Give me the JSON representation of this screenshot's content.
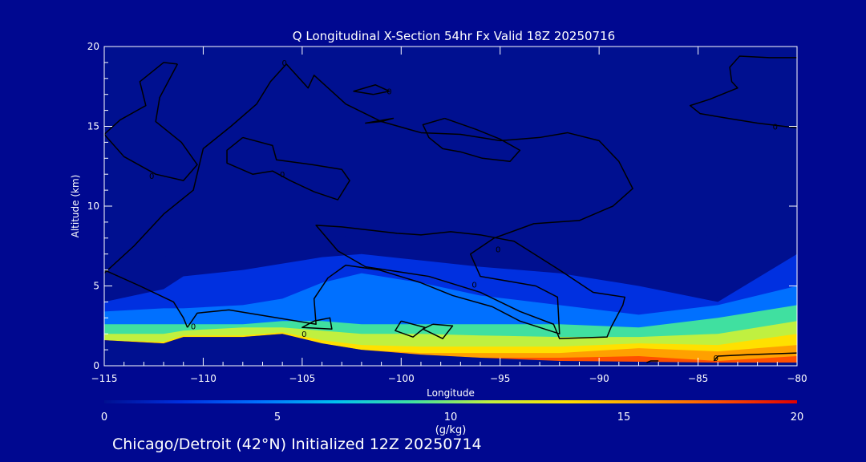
{
  "chart_data": {
    "type": "heatmap",
    "title": "Q Longitudinal X-Section 54hr  Fx Valid 18Z 20250716",
    "xlabel": "Longitude",
    "ylabel": "Altitude (km)",
    "xlim": [
      -115,
      -80
    ],
    "ylim": [
      0,
      20
    ],
    "xticks": [
      "−115",
      "−110",
      "−105",
      "−100",
      "−95",
      "−90",
      "−85",
      "−80"
    ],
    "yticks": [
      "0",
      "5",
      "10",
      "15",
      "20"
    ],
    "colorbar": {
      "label": "(g/kg)",
      "range": [
        0,
        20
      ],
      "ticks": [
        "0",
        "5",
        "10",
        "15",
        "20"
      ],
      "colors": [
        "#001090",
        "#0030e0",
        "#0070ff",
        "#00c0f0",
        "#40e0a0",
        "#c0f040",
        "#ffe000",
        "#ffa000",
        "#ff5000",
        "#e00000"
      ]
    },
    "contour_labels": [
      "0",
      "0",
      "0",
      "0",
      "0",
      "0",
      "0",
      "0",
      "0",
      "0"
    ],
    "terrain": {
      "lon": [
        -115,
        -112,
        -111,
        -108,
        -106,
        -104,
        -102,
        -99,
        -96,
        -92,
        -88,
        -84,
        -80
      ],
      "alt": [
        1.6,
        1.4,
        1.8,
        1.8,
        2.0,
        1.4,
        1.0,
        0.7,
        0.5,
        0.3,
        0.25,
        0.2,
        0.2
      ]
    },
    "moisture_layers": [
      {
        "q": 1,
        "top": [
          6.0,
          6.8,
          7.4,
          7.6,
          7.8,
          8.0,
          8.2,
          8.5,
          8.8,
          9.0,
          9.2,
          8.0,
          7.6
        ]
      },
      {
        "q": 3,
        "top": [
          4.0,
          4.8,
          5.6,
          6.0,
          6.4,
          6.8,
          7.0,
          6.6,
          6.2,
          5.8,
          5.0,
          4.0,
          7.0
        ]
      },
      {
        "q": 5,
        "top": [
          3.4,
          3.6,
          3.6,
          3.8,
          4.2,
          5.2,
          5.8,
          5.2,
          4.4,
          3.8,
          3.2,
          3.8,
          5.0
        ]
      },
      {
        "q": 8,
        "top": [
          2.6,
          2.6,
          2.6,
          2.6,
          2.8,
          2.8,
          2.6,
          2.6,
          2.6,
          2.6,
          2.4,
          3.0,
          3.8
        ]
      },
      {
        "q": 11,
        "top": [
          2.0,
          2.0,
          2.2,
          2.4,
          2.4,
          2.2,
          2.0,
          2.0,
          1.9,
          1.8,
          1.8,
          2.0,
          2.8
        ]
      },
      {
        "q": 13,
        "top": [
          1.6,
          1.5,
          1.9,
          1.9,
          2.1,
          1.6,
          1.3,
          1.2,
          1.2,
          1.2,
          1.4,
          1.3,
          2.0
        ]
      },
      {
        "q": 15,
        "top": [
          1.6,
          1.4,
          1.8,
          1.8,
          2.0,
          1.4,
          1.0,
          0.8,
          0.8,
          0.8,
          1.1,
          0.9,
          1.3
        ]
      },
      {
        "q": 17,
        "top": [
          1.6,
          1.4,
          1.8,
          1.8,
          2.0,
          1.4,
          1.0,
          0.7,
          0.5,
          0.5,
          0.6,
          0.3,
          0.6
        ]
      }
    ],
    "contours": [
      [
        [
          -115,
          5.8
        ],
        [
          -113.5,
          7.5
        ],
        [
          -112,
          9.5
        ],
        [
          -110.5,
          11.0
        ],
        [
          -110,
          13.6
        ],
        [
          -108.6,
          15.0
        ],
        [
          -107.3,
          16.4
        ],
        [
          -106.6,
          17.8
        ],
        [
          -105.8,
          18.9
        ],
        [
          -104.7,
          17.4
        ],
        [
          -104.4,
          18.2
        ],
        [
          -102.8,
          16.4
        ],
        [
          -101.0,
          15.3
        ],
        [
          -99.0,
          14.6
        ],
        [
          -97.0,
          14.5
        ],
        [
          -95.0,
          14.1
        ],
        [
          -93.0,
          14.3
        ],
        [
          -91.6,
          14.6
        ],
        [
          -90.0,
          14.1
        ],
        [
          -89.0,
          12.8
        ],
        [
          -88.3,
          11.1
        ],
        [
          -89.3,
          10.0
        ],
        [
          -91.0,
          9.1
        ],
        [
          -93.3,
          8.9
        ],
        [
          -95.3,
          8.0
        ],
        [
          -96.5,
          7.0
        ],
        [
          -96.0,
          5.6
        ],
        [
          -93.2,
          5.0
        ],
        [
          -92.1,
          4.3
        ],
        [
          -92.0,
          2.0
        ],
        [
          -94.0,
          2.8
        ],
        [
          -95.4,
          3.7
        ],
        [
          -97.4,
          4.4
        ],
        [
          -99.0,
          5.2
        ],
        [
          -101.1,
          6.0
        ],
        [
          -102.8,
          6.3
        ],
        [
          -103.7,
          5.5
        ],
        [
          -104.4,
          4.2
        ],
        [
          -104.3,
          2.6
        ],
        [
          -108.7,
          3.5
        ],
        [
          -110.3,
          3.3
        ],
        [
          -110.8,
          2.4
        ]
      ],
      [
        [
          -115,
          6.0
        ],
        [
          -113.2,
          5.0
        ],
        [
          -111.5,
          4.0
        ],
        [
          -111.0,
          3.0
        ],
        [
          -110.8,
          2.4
        ]
      ],
      [
        [
          -104.4,
          2.8
        ],
        [
          -105.0,
          2.4
        ],
        [
          -103.5,
          2.3
        ],
        [
          -103.6,
          3.0
        ],
        [
          -104.4,
          2.8
        ]
      ],
      [
        [
          -100.0,
          2.8
        ],
        [
          -100.3,
          2.2
        ],
        [
          -99.4,
          1.8
        ],
        [
          -98.8,
          2.4
        ],
        [
          -100.0,
          2.8
        ]
      ],
      [
        [
          -98.4,
          2.6
        ],
        [
          -98.9,
          2.3
        ],
        [
          -97.9,
          1.7
        ],
        [
          -97.4,
          2.5
        ],
        [
          -98.4,
          2.6
        ]
      ],
      [
        [
          -100.2,
          8.3
        ],
        [
          -99.0,
          8.2
        ],
        [
          -97.5,
          8.4
        ],
        [
          -96.0,
          8.2
        ],
        [
          -94.3,
          7.8
        ],
        [
          -92.0,
          6.0
        ],
        [
          -90.3,
          4.6
        ],
        [
          -88.7,
          4.3
        ],
        [
          -88.8,
          3.8
        ],
        [
          -89.4,
          2.4
        ],
        [
          -89.6,
          1.8
        ],
        [
          -92.0,
          1.7
        ],
        [
          -92.3,
          2.6
        ],
        [
          -94.0,
          3.4
        ],
        [
          -96.0,
          4.6
        ],
        [
          -98.6,
          5.6
        ],
        [
          -101.8,
          6.2
        ],
        [
          -103.2,
          7.2
        ],
        [
          -104.3,
          8.8
        ],
        [
          -103.0,
          8.7
        ],
        [
          -100.2,
          8.3
        ]
      ],
      [
        [
          -111.3,
          18.9
        ],
        [
          -112.0,
          19.0
        ],
        [
          -113.2,
          17.8
        ],
        [
          -112.9,
          16.3
        ],
        [
          -114.2,
          15.4
        ],
        [
          -115.0,
          14.5
        ],
        [
          -114.0,
          13.1
        ],
        [
          -112.4,
          12.0
        ],
        [
          -111.0,
          11.6
        ],
        [
          -110.3,
          12.6
        ],
        [
          -111.1,
          14.0
        ],
        [
          -112.4,
          15.3
        ],
        [
          -112.2,
          16.8
        ],
        [
          -111.3,
          18.9
        ]
      ],
      [
        [
          -108.0,
          14.3
        ],
        [
          -108.8,
          13.5
        ],
        [
          -108.8,
          12.7
        ],
        [
          -107.5,
          12.0
        ],
        [
          -106.5,
          12.2
        ],
        [
          -105.6,
          11.6
        ],
        [
          -104.4,
          10.9
        ],
        [
          -103.2,
          10.4
        ],
        [
          -102.6,
          11.6
        ],
        [
          -103.0,
          12.3
        ],
        [
          -104.5,
          12.6
        ],
        [
          -106.3,
          12.9
        ],
        [
          -106.5,
          13.8
        ],
        [
          -108.0,
          14.3
        ]
      ],
      [
        [
          -97.8,
          15.5
        ],
        [
          -98.9,
          15.1
        ],
        [
          -98.6,
          14.3
        ],
        [
          -97.9,
          13.6
        ],
        [
          -97.0,
          13.4
        ],
        [
          -95.9,
          13.0
        ],
        [
          -94.5,
          12.8
        ],
        [
          -94.0,
          13.5
        ],
        [
          -95.0,
          14.2
        ],
        [
          -96.2,
          14.8
        ],
        [
          -97.8,
          15.5
        ]
      ],
      [
        [
          -101.4,
          17.0
        ],
        [
          -102.4,
          17.2
        ],
        [
          -101.3,
          17.6
        ],
        [
          -100.6,
          17.2
        ],
        [
          -101.4,
          17.0
        ]
      ],
      [
        [
          -101.0,
          15.3
        ],
        [
          -101.8,
          15.2
        ],
        [
          -100.4,
          15.5
        ],
        [
          -101.0,
          15.3
        ]
      ],
      [
        [
          -80.0,
          19.3
        ],
        [
          -81.4,
          19.3
        ],
        [
          -82.9,
          19.4
        ],
        [
          -83.4,
          18.7
        ],
        [
          -83.3,
          17.8
        ],
        [
          -83.0,
          17.4
        ],
        [
          -84.4,
          16.7
        ],
        [
          -85.4,
          16.3
        ],
        [
          -84.9,
          15.8
        ],
        [
          -83.5,
          15.5
        ],
        [
          -82.0,
          15.2
        ],
        [
          -80.0,
          14.9
        ]
      ],
      [
        [
          -84.2,
          0.3
        ],
        [
          -84.0,
          0.6
        ],
        [
          -82.4,
          0.7
        ],
        [
          -80.0,
          0.8
        ]
      ],
      [
        [
          -87.0,
          0.3
        ],
        [
          -87.4,
          0.3
        ],
        [
          -87.6,
          0.2
        ]
      ]
    ]
  },
  "footer": "Chicago/Detroit (42°N) Initialized 12Z 20250714"
}
